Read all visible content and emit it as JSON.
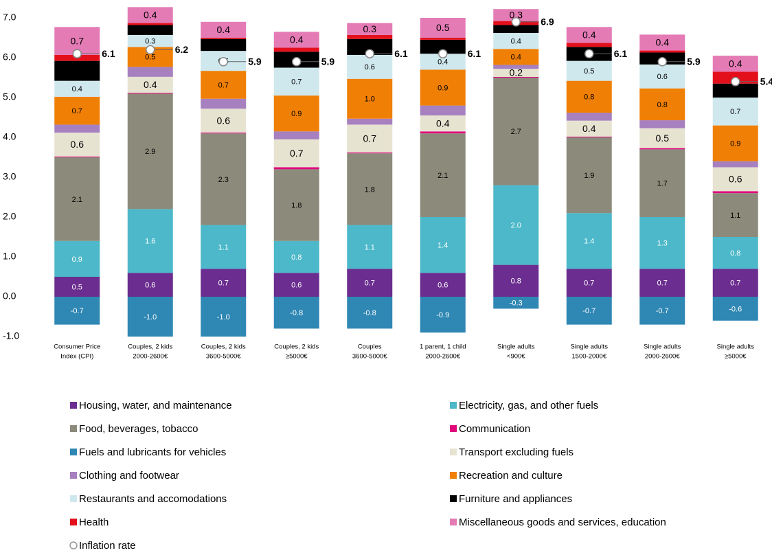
{
  "chart_data": {
    "type": "bar",
    "stacked": true,
    "categories": [
      [
        "Consumer Price",
        "Index (CPI)"
      ],
      [
        "Couples, 2 kids",
        "2000-2600€"
      ],
      [
        "Couples, 2 kids",
        "3600-5000€"
      ],
      [
        "Couples, 2 kids",
        "≥5000€"
      ],
      [
        "Couples",
        "3600-5000€"
      ],
      [
        "1 parent, 1 child",
        "2000-2600€"
      ],
      [
        "Single adults",
        "<900€"
      ],
      [
        "Single adults",
        "1500-2000€"
      ],
      [
        "Single adults",
        "2000-2600€"
      ],
      [
        "Single adults",
        "≥5000€"
      ]
    ],
    "ylim": [
      -1,
      7
    ],
    "yticks": [
      {
        "value": -1,
        "label": "-1.0"
      },
      {
        "value": 0,
        "label": "0.0"
      },
      {
        "value": 1,
        "label": "1.0"
      },
      {
        "value": 2,
        "label": "2.0"
      },
      {
        "value": 3,
        "label": "3.0"
      },
      {
        "value": 4,
        "label": "4.0"
      },
      {
        "value": 5,
        "label": "5.0"
      },
      {
        "value": 6,
        "label": "6.0"
      },
      {
        "value": 7,
        "label": "7.0"
      }
    ],
    "grid": false,
    "series": [
      {
        "name": "Housing, water, and maintenance",
        "color": "#6b2d8f",
        "values": [
          0.5,
          0.6,
          0.7,
          0.6,
          0.7,
          0.6,
          0.8,
          0.7,
          0.7,
          0.7
        ],
        "value_labels": [
          "0.5",
          "0.6",
          "0.7",
          "0.6",
          "0.7",
          "0.6",
          "0.8",
          "0.7",
          "0.7",
          "0.7"
        ]
      },
      {
        "name": "Electricity, gas, and other fuels",
        "color": "#4cb8c9",
        "values": [
          0.9,
          1.6,
          1.1,
          0.8,
          1.1,
          1.4,
          2.0,
          1.4,
          1.3,
          0.8
        ],
        "value_labels": [
          "0.9",
          "1.6",
          "1.1",
          "0.8",
          "1.1",
          "1.4",
          "2.0",
          "1.4",
          "1.3",
          "0.8"
        ]
      },
      {
        "name": "Food, beverages, tobacco",
        "color": "#8c8b7b",
        "values": [
          2.1,
          2.9,
          2.3,
          1.8,
          1.8,
          2.1,
          2.7,
          1.9,
          1.7,
          1.1
        ],
        "value_labels": [
          "2.1",
          "2.9",
          "2.3",
          "1.8",
          "1.8",
          "2.1",
          "2.7",
          "1.9",
          "1.7",
          "1.1"
        ]
      },
      {
        "name": "Communication",
        "color": "#e0077d",
        "values": [
          0.02,
          0.02,
          0.02,
          0.05,
          0.02,
          0.05,
          0.02,
          0.02,
          0.03,
          0.05
        ],
        "value_labels": [
          null,
          null,
          null,
          null,
          null,
          null,
          null,
          null,
          null,
          null
        ]
      },
      {
        "name": "Fuels and lubricants for vehicles",
        "color": "#2f87b3",
        "values": [
          -0.7,
          -1.0,
          -1.0,
          -0.8,
          -0.8,
          -0.9,
          -0.3,
          -0.7,
          -0.7,
          -0.6
        ],
        "value_labels": [
          "-0.7",
          "-1.0",
          "-1.0",
          "-0.8",
          "-0.8",
          "-0.9",
          "-0.3",
          "-0.7",
          "-0.7",
          "-0.6"
        ]
      },
      {
        "name": "Transport excluding fuels",
        "color": "#e7e3d1",
        "values": [
          0.6,
          0.4,
          0.6,
          0.7,
          0.7,
          0.4,
          0.2,
          0.4,
          0.5,
          0.6
        ],
        "value_labels": [
          "0.6",
          "0.4",
          "0.6",
          "0.7",
          "0.7",
          "0.4",
          "0.2",
          "0.4",
          "0.5",
          "0.6"
        ]
      },
      {
        "name": "Clothing and footwear",
        "color": "#a680bf",
        "values": [
          0.2,
          0.25,
          0.25,
          0.2,
          0.15,
          0.25,
          0.1,
          0.2,
          0.2,
          0.15
        ],
        "value_labels": [
          null,
          null,
          null,
          null,
          null,
          null,
          null,
          null,
          null,
          null
        ]
      },
      {
        "name": "Recreation and culture",
        "color": "#f07f05",
        "values": [
          0.7,
          0.5,
          0.7,
          0.9,
          1.0,
          0.9,
          0.4,
          0.8,
          0.8,
          0.9
        ],
        "value_labels": [
          "0.7",
          "0.5",
          "0.7",
          "0.9",
          "1.0",
          "0.9",
          "0.4",
          "0.8",
          "0.8",
          "0.9"
        ]
      },
      {
        "name": "Restaurants and accomodations",
        "color": "#cfe8ee",
        "values": [
          0.4,
          0.3,
          0.5,
          0.7,
          0.6,
          0.4,
          0.4,
          0.5,
          0.6,
          0.7
        ],
        "value_labels": [
          "0.4",
          "0.3",
          "0.5",
          "0.7",
          "0.6",
          "0.4",
          "0.4",
          "0.5",
          "0.6",
          "0.7"
        ]
      },
      {
        "name": "Furniture and appliances",
        "color": "#000000",
        "values": [
          0.5,
          0.25,
          0.3,
          0.4,
          0.4,
          0.35,
          0.2,
          0.35,
          0.3,
          0.35
        ],
        "value_labels": [
          null,
          null,
          null,
          null,
          null,
          null,
          null,
          null,
          null,
          null
        ]
      },
      {
        "name": "Health",
        "color": "#e3101c",
        "values": [
          0.15,
          0.05,
          0.03,
          0.1,
          0.1,
          0.05,
          0.1,
          0.1,
          0.05,
          0.3
        ],
        "value_labels": [
          null,
          null,
          null,
          null,
          null,
          null,
          null,
          null,
          null,
          null
        ]
      },
      {
        "name": "Miscellaneous goods and services, education",
        "color": "#e47bb5",
        "values": [
          0.7,
          0.4,
          0.4,
          0.4,
          0.3,
          0.5,
          0.3,
          0.4,
          0.4,
          0.4
        ],
        "value_labels": [
          "0.7",
          "0.4",
          "0.4",
          "0.4",
          "0.3",
          "0.5",
          "0.3",
          "0.4",
          "0.4",
          "0.4"
        ]
      }
    ],
    "inflation": {
      "name": "Inflation rate",
      "values": [
        6.1,
        6.2,
        5.9,
        5.9,
        6.1,
        6.1,
        6.9,
        6.1,
        5.9,
        5.4
      ]
    }
  }
}
